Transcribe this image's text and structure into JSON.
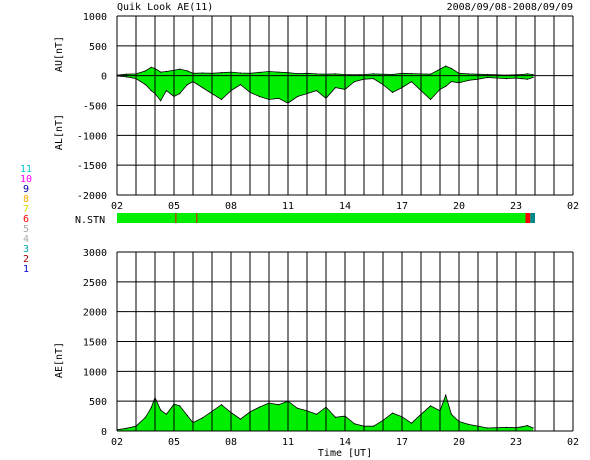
{
  "header": {
    "title": "Quik Look AE(11)",
    "date_range": "2008/09/08-2008/09/09"
  },
  "legend": {
    "label": "N.STN",
    "items": [
      {
        "label": "11",
        "color": "#00cccc"
      },
      {
        "label": "10",
        "color": "#ff00ff"
      },
      {
        "label": "9",
        "color": "#0000aa"
      },
      {
        "label": "8",
        "color": "#ffaa00"
      },
      {
        "label": "7",
        "color": "#dddd00"
      },
      {
        "label": "6",
        "color": "#ff0000"
      },
      {
        "label": "5",
        "color": "#aaaaaa"
      },
      {
        "label": "4",
        "color": "#aaaaaa"
      },
      {
        "label": "3",
        "color": "#00aaaa"
      },
      {
        "label": "2",
        "color": "#aa0000"
      },
      {
        "label": "1",
        "color": "#0000cc"
      }
    ]
  },
  "colors": {
    "fill": "#00ee00",
    "line": "#000000",
    "grid": "#000000",
    "station_bar": "#00ee00",
    "station_red": "#ff0000",
    "station_teal": "#008888"
  },
  "chart_data": [
    {
      "type": "area",
      "ylabel_top": "AU[nT]",
      "ylabel_bottom": "AL[nT]",
      "xlabel": "",
      "ylim": [
        -2000,
        1000
      ],
      "y_ticks": [
        "1000",
        "500",
        "0",
        "-500",
        "-1000",
        "-1500",
        "-2000"
      ],
      "x_tick_labels": [
        "02",
        "05",
        "08",
        "11",
        "14",
        "17",
        "20",
        "23",
        "02"
      ],
      "x_range_hours": [
        2,
        26
      ],
      "series": [
        {
          "key": "AU",
          "x": [
            2.0,
            2.5,
            3.0,
            3.5,
            3.8,
            4.0,
            4.3,
            4.6,
            5.0,
            5.3,
            5.7,
            6.0,
            6.5,
            7.0,
            7.5,
            8.0,
            8.5,
            9.0,
            9.5,
            10.0,
            10.5,
            11.0,
            11.5,
            12.0,
            12.5,
            13.0,
            13.5,
            14.0,
            14.5,
            15.0,
            15.5,
            16.0,
            16.5,
            17.0,
            17.5,
            18.0,
            18.5,
            19.0,
            19.3,
            19.6,
            20.0,
            20.5,
            21.0,
            21.5,
            22.0,
            22.5,
            23.0,
            23.3,
            23.6,
            23.9
          ],
          "values": [
            10,
            25,
            30,
            80,
            140,
            120,
            60,
            70,
            90,
            110,
            80,
            40,
            45,
            40,
            50,
            60,
            45,
            40,
            55,
            70,
            60,
            50,
            35,
            40,
            30,
            25,
            30,
            20,
            15,
            20,
            30,
            25,
            20,
            40,
            35,
            30,
            25,
            110,
            160,
            120,
            40,
            30,
            25,
            20,
            15,
            10,
            15,
            20,
            30,
            20
          ]
        },
        {
          "key": "AL",
          "x": [
            2.0,
            2.5,
            3.0,
            3.5,
            3.8,
            4.0,
            4.3,
            4.6,
            5.0,
            5.3,
            5.7,
            6.0,
            6.5,
            7.0,
            7.5,
            8.0,
            8.5,
            9.0,
            9.5,
            10.0,
            10.5,
            11.0,
            11.5,
            12.0,
            12.5,
            13.0,
            13.5,
            14.0,
            14.5,
            15.0,
            15.5,
            16.0,
            16.5,
            17.0,
            17.5,
            18.0,
            18.5,
            19.0,
            19.3,
            19.6,
            20.0,
            20.5,
            21.0,
            21.5,
            22.0,
            22.5,
            23.0,
            23.3,
            23.6,
            23.9
          ],
          "values": [
            -5,
            -20,
            -50,
            -150,
            -250,
            -300,
            -420,
            -250,
            -350,
            -300,
            -150,
            -100,
            -200,
            -300,
            -400,
            -250,
            -150,
            -280,
            -350,
            -400,
            -380,
            -460,
            -350,
            -300,
            -250,
            -380,
            -200,
            -230,
            -100,
            -60,
            -50,
            -150,
            -280,
            -200,
            -100,
            -250,
            -400,
            -230,
            -180,
            -100,
            -120,
            -80,
            -60,
            -30,
            -40,
            -50,
            -40,
            -50,
            -60,
            -30
          ]
        }
      ]
    },
    {
      "type": "area",
      "ylabel": "AE[nT]",
      "xlabel": "Time [UT]",
      "ylim": [
        0,
        3000
      ],
      "y_ticks": [
        "3000",
        "2500",
        "2000",
        "1500",
        "1000",
        "500",
        "0"
      ],
      "x_tick_labels": [
        "02",
        "05",
        "08",
        "11",
        "14",
        "17",
        "20",
        "23",
        "02"
      ],
      "x_range_hours": [
        2,
        26
      ],
      "series": [
        {
          "key": "AE",
          "x": [
            2.0,
            2.5,
            3.0,
            3.5,
            3.8,
            4.0,
            4.3,
            4.6,
            5.0,
            5.3,
            5.7,
            6.0,
            6.5,
            7.0,
            7.5,
            8.0,
            8.5,
            9.0,
            9.5,
            10.0,
            10.5,
            11.0,
            11.5,
            12.0,
            12.5,
            13.0,
            13.5,
            14.0,
            14.5,
            15.0,
            15.5,
            16.0,
            16.5,
            17.0,
            17.5,
            18.0,
            18.5,
            19.0,
            19.3,
            19.6,
            20.0,
            20.5,
            21.0,
            21.5,
            22.0,
            22.5,
            23.0,
            23.3,
            23.6,
            23.9
          ],
          "values": [
            20,
            45,
            80,
            230,
            390,
            560,
            350,
            280,
            450,
            420,
            260,
            140,
            220,
            330,
            440,
            310,
            200,
            320,
            400,
            470,
            440,
            500,
            380,
            340,
            280,
            400,
            230,
            250,
            120,
            80,
            80,
            180,
            300,
            240,
            130,
            280,
            420,
            340,
            600,
            280,
            160,
            110,
            80,
            50,
            55,
            60,
            55,
            70,
            90,
            50
          ]
        }
      ]
    }
  ],
  "station_bar": {
    "marks_hours": [
      5.1,
      6.2
    ],
    "red_end_hours": [
      23.5,
      23.75
    ],
    "teal_end_hours": [
      23.75,
      24.0
    ]
  }
}
